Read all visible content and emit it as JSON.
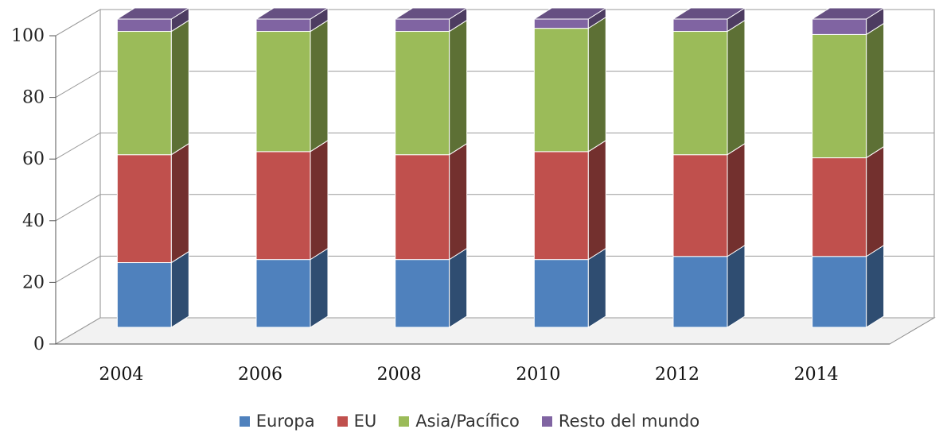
{
  "chart_data": {
    "type": "bar",
    "stacked": true,
    "style": "3d",
    "title": "",
    "xlabel": "",
    "ylabel": "",
    "ylim": [
      0,
      100
    ],
    "yticks": [
      0,
      20,
      40,
      60,
      80,
      100
    ],
    "ytick_labels": [
      "0",
      "20",
      "40",
      "60",
      "80",
      "100"
    ],
    "categories": [
      "2004",
      "2006",
      "2008",
      "2010",
      "2012",
      "2014"
    ],
    "series": [
      {
        "name": "Europa",
        "color": "#4F81BD",
        "values": [
          21,
          22,
          22,
          22,
          23,
          23
        ]
      },
      {
        "name": "EU",
        "color": "#C0504D",
        "values": [
          35,
          35,
          34,
          35,
          33,
          32
        ]
      },
      {
        "name": "Asia/Pacífico",
        "color": "#9BBB59",
        "values": [
          40,
          39,
          40,
          40,
          40,
          40
        ]
      },
      {
        "name": "Resto del mundo",
        "color": "#8064A2",
        "values": [
          4,
          4,
          4,
          3,
          4,
          5
        ]
      }
    ],
    "legend_position": "bottom",
    "grid": true
  }
}
